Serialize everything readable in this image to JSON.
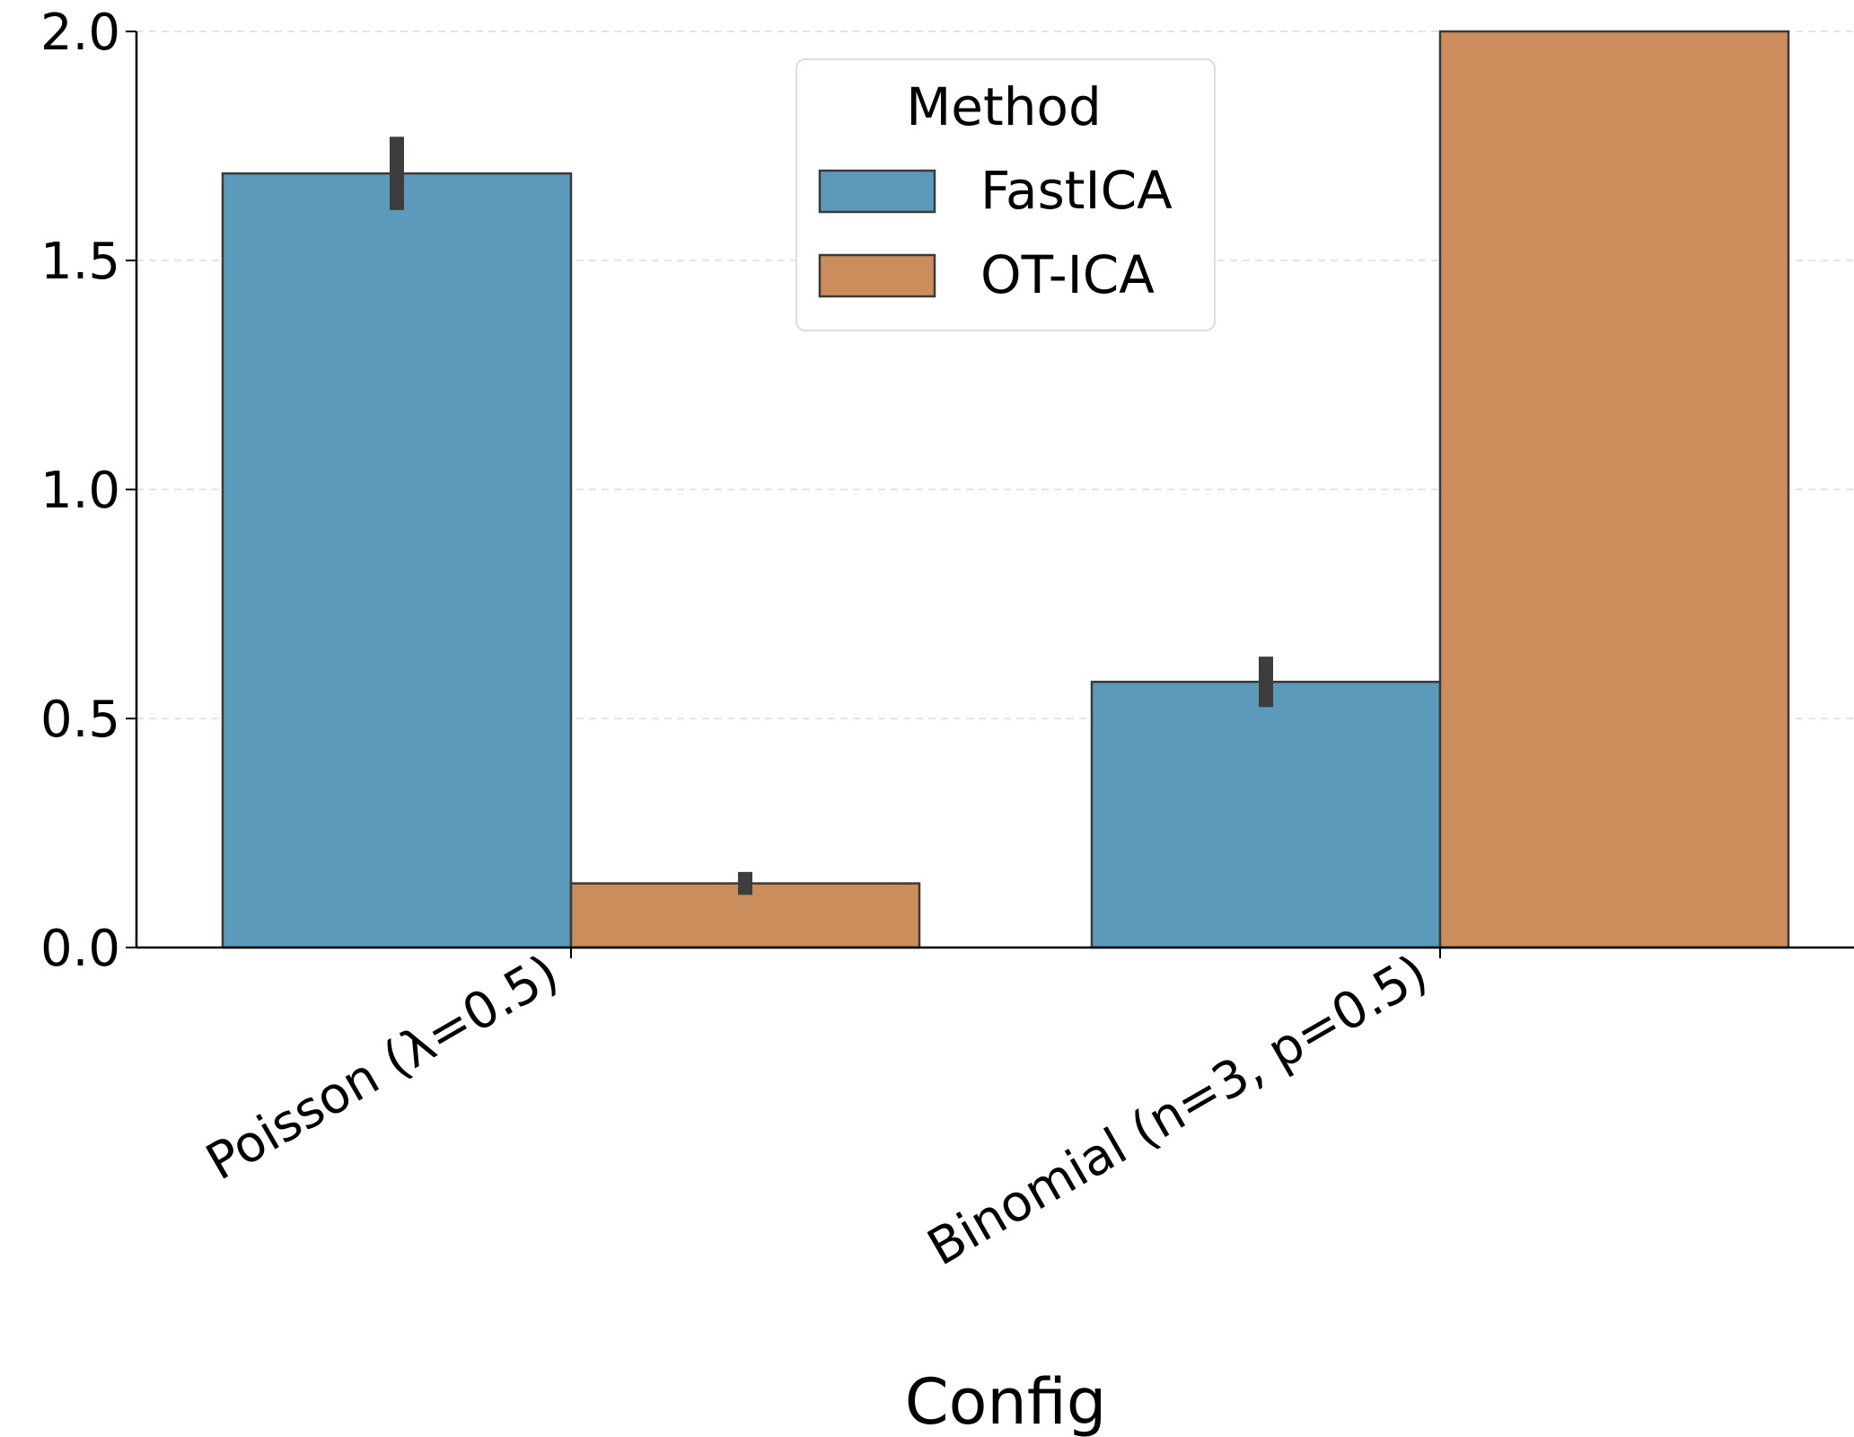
{
  "chart_data": {
    "type": "bar",
    "title": "",
    "xlabel": "Config",
    "ylabel": "",
    "categories": [
      "Poisson (λ=0.5)",
      "Binomial (n=3, p=0.5)"
    ],
    "series": [
      {
        "name": "FastICA",
        "values": [
          1.69,
          0.58
        ],
        "error": [
          0.08,
          0.055
        ],
        "color": "#5b9aba"
      },
      {
        "name": "OT-ICA",
        "values": [
          0.14,
          2.0
        ],
        "error": [
          0.025,
          0
        ],
        "color": "#cc8d5d"
      }
    ],
    "ylim": [
      0,
      2.0
    ],
    "yticks": [
      "0.0",
      "0.5",
      "1.0",
      "1.5",
      "2.0"
    ],
    "grid": true,
    "legend": {
      "title": "Method",
      "placement": "top-center"
    }
  }
}
